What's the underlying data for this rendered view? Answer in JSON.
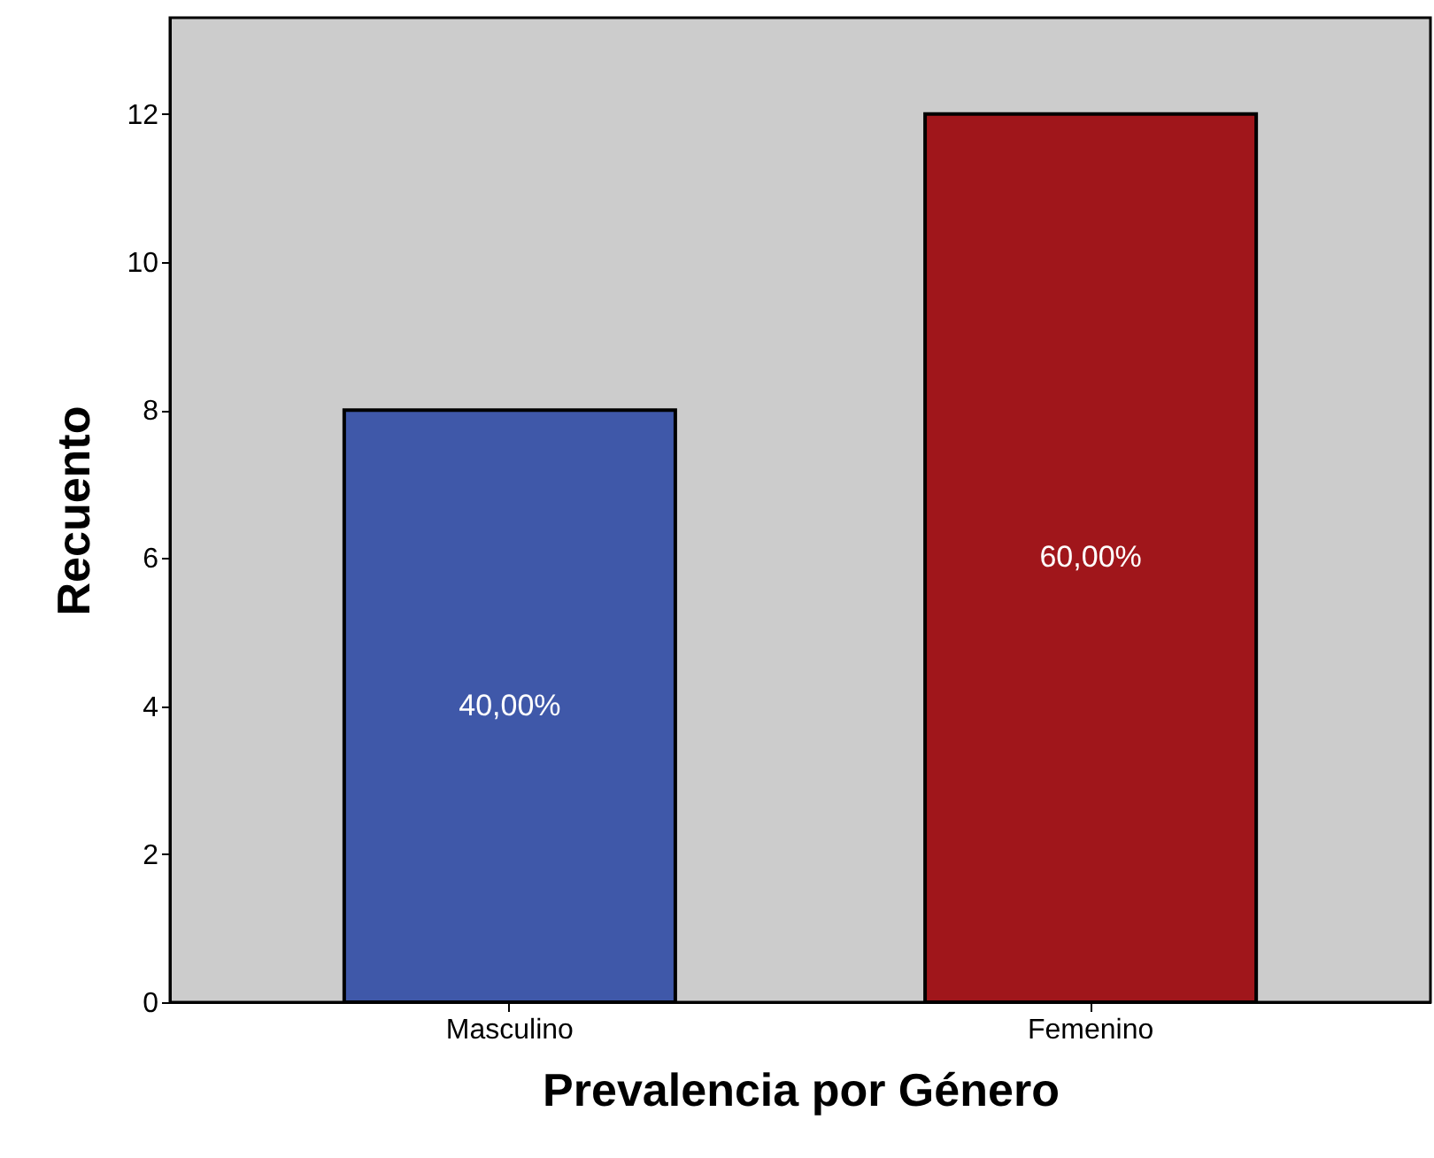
{
  "chart_data": {
    "type": "bar",
    "xlabel": "Prevalencia por Género",
    "ylabel": "Recuento",
    "categories": [
      "Masculino",
      "Femenino"
    ],
    "values": [
      8,
      12
    ],
    "colors": [
      "#3f58a9",
      "#a0161b"
    ],
    "annotations": [
      "40,00%",
      "60,00%"
    ],
    "ylim": [
      0,
      13.3
    ],
    "yticks": [
      0,
      2,
      4,
      6,
      8,
      10,
      12
    ],
    "grid": false
  }
}
